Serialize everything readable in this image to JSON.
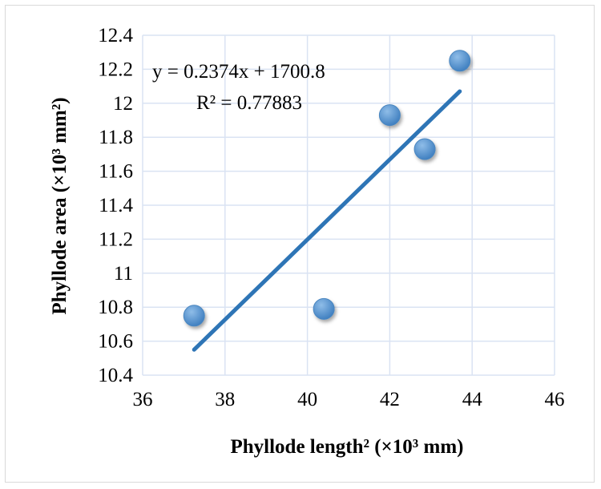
{
  "chart_data": {
    "type": "scatter",
    "x": [
      37.25,
      40.4,
      42.0,
      42.85,
      43.7
    ],
    "y": [
      10.75,
      10.79,
      11.93,
      11.73,
      12.25
    ],
    "xlabel": "Phyllode length² (×10³ mm)",
    "ylabel": "Phyllode area (×10³ mm²)",
    "xlim": [
      36,
      46
    ],
    "ylim": [
      10.4,
      12.4
    ],
    "xticks": [
      "36",
      "38",
      "40",
      "42",
      "44",
      "46"
    ],
    "yticks": [
      "10.4",
      "10.6",
      "10.8",
      "11",
      "11.2",
      "11.4",
      "11.6",
      "11.8",
      "12",
      "12.2",
      "12.4"
    ],
    "trendline": {
      "x": [
        37.25,
        43.7
      ],
      "y": [
        10.55,
        12.07
      ]
    },
    "equation": "y = 0.2374x + 1700.8",
    "r_squared": "R² = 0.77883",
    "grid": true,
    "legend": "none",
    "colors": {
      "marker": "#5b9bd5",
      "marker_edge": "#4a86c0",
      "trendline": "#2e75b6",
      "grid": "#dae3f3"
    }
  }
}
